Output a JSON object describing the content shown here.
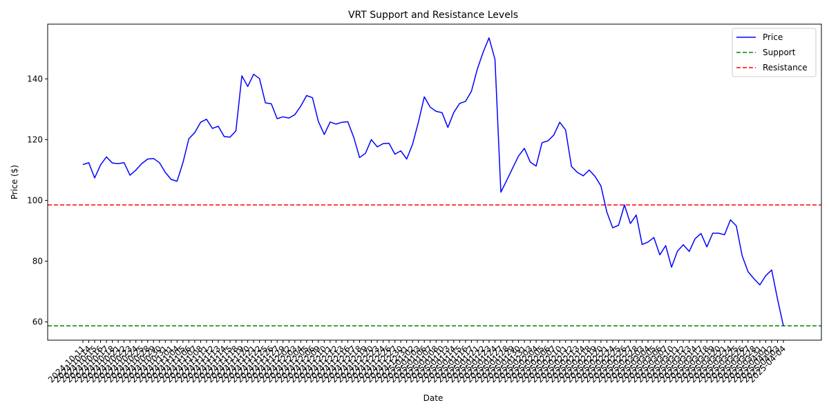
{
  "chart_data": {
    "type": "line",
    "title": "VRT Support and Resistance Levels",
    "xlabel": "Date",
    "ylabel": "Price ($)",
    "ylim": [
      54,
      158
    ],
    "yticks": [
      60,
      80,
      100,
      120,
      140
    ],
    "grid": false,
    "legend_position": "top-right",
    "x_tick_labels": [
      "2024-10-11",
      "2024-10-14",
      "2024-10-15",
      "2024-10-16",
      "2024-10-17",
      "2024-10-18",
      "2024-10-21",
      "2024-10-22",
      "2024-10-23",
      "2024-10-24",
      "2024-10-25",
      "2024-10-28",
      "2024-10-29",
      "2024-10-30",
      "2024-10-31",
      "2024-11-01",
      "2024-11-04",
      "2024-11-05",
      "2024-11-06",
      "2024-11-07",
      "2024-11-08",
      "2024-11-11",
      "2024-11-12",
      "2024-11-13",
      "2024-11-14",
      "2024-11-15",
      "2024-11-18",
      "2024-11-19",
      "2024-11-20",
      "2024-11-21",
      "2024-11-22",
      "2024-11-25",
      "2024-11-26",
      "2024-11-27",
      "2024-11-29",
      "2024-12-02",
      "2024-12-03",
      "2024-12-04",
      "2024-12-05",
      "2024-12-06",
      "2024-12-09",
      "2024-12-10",
      "2024-12-11",
      "2024-12-12",
      "2024-12-13",
      "2024-12-16",
      "2024-12-17",
      "2024-12-18",
      "2024-12-19",
      "2024-12-20",
      "2024-12-23",
      "2024-12-24",
      "2024-12-26",
      "2024-12-27",
      "2024-12-30",
      "2024-12-31",
      "2025-01-02",
      "2025-01-03",
      "2025-01-06",
      "2025-01-07",
      "2025-01-08",
      "2025-01-10",
      "2025-01-13",
      "2025-01-14",
      "2025-01-15",
      "2025-01-16",
      "2025-01-17",
      "2025-01-21",
      "2025-01-22",
      "2025-01-23",
      "2025-01-24",
      "2025-01-27",
      "2025-01-28",
      "2025-01-29",
      "2025-01-30",
      "2025-01-31",
      "2025-02-03",
      "2025-02-04",
      "2025-02-05",
      "2025-02-06",
      "2025-02-07",
      "2025-02-10",
      "2025-02-11",
      "2025-02-12",
      "2025-02-13",
      "2025-02-14",
      "2025-02-18",
      "2025-02-19",
      "2025-02-20",
      "2025-02-21",
      "2025-02-24",
      "2025-02-25",
      "2025-02-26",
      "2025-02-27",
      "2025-02-28",
      "2025-03-03",
      "2025-03-04",
      "2025-03-05",
      "2025-03-06",
      "2025-03-07",
      "2025-03-10",
      "2025-03-11",
      "2025-03-12",
      "2025-03-13",
      "2025-03-14",
      "2025-03-17",
      "2025-03-18",
      "2025-03-19",
      "2025-03-20",
      "2025-03-21",
      "2025-03-24",
      "2025-03-25",
      "2025-03-26",
      "2025-03-27",
      "2025-03-28",
      "2025-03-31",
      "2025-04-01",
      "2025-04-02",
      "2025-04-03",
      "2025-04-04"
    ],
    "series": [
      {
        "name": "Price",
        "color": "#0000ff",
        "style": "solid",
        "values": [
          111.8,
          112.4,
          107.4,
          111.7,
          114.3,
          112.3,
          112.1,
          112.4,
          108.3,
          110.0,
          112.1,
          113.6,
          113.8,
          112.4,
          109.2,
          106.9,
          106.3,
          112.5,
          120.3,
          122.3,
          125.7,
          126.7,
          123.7,
          124.4,
          121.0,
          120.8,
          122.9,
          141.0,
          137.5,
          141.5,
          140.1,
          132.1,
          131.8,
          126.9,
          127.5,
          127.1,
          128.2,
          131.0,
          134.5,
          133.8,
          126.0,
          121.7,
          125.8,
          125.1,
          125.7,
          125.9,
          120.8,
          114.1,
          115.5,
          120.0,
          117.6,
          118.7,
          118.8,
          115.2,
          116.3,
          113.6,
          118.5,
          125.8,
          134.1,
          130.7,
          129.3,
          128.9,
          124.0,
          128.9,
          131.9,
          132.6,
          135.9,
          143.2,
          148.8,
          153.5,
          146.4,
          102.7,
          106.6,
          110.6,
          114.6,
          117.1,
          112.6,
          111.3,
          119.0,
          119.6,
          121.5,
          125.7,
          123.2,
          111.2,
          109.2,
          108.1,
          110.0,
          107.9,
          104.8,
          96.2,
          91.0,
          91.8,
          98.5,
          92.4,
          95.2,
          85.5,
          86.3,
          87.8,
          82.1,
          85.1,
          78.0,
          83.3,
          85.4,
          83.2,
          87.4,
          89.1,
          84.7,
          89.2,
          89.2,
          88.7,
          93.6,
          91.6,
          81.7,
          76.5,
          74.2,
          72.2,
          75.2,
          77.1,
          67.5,
          58.7
        ]
      },
      {
        "name": "Support",
        "color": "#008000",
        "style": "dashed",
        "value": 58.7
      },
      {
        "name": "Resistance",
        "color": "#ff0000",
        "style": "dashed",
        "value": 98.5
      }
    ]
  }
}
